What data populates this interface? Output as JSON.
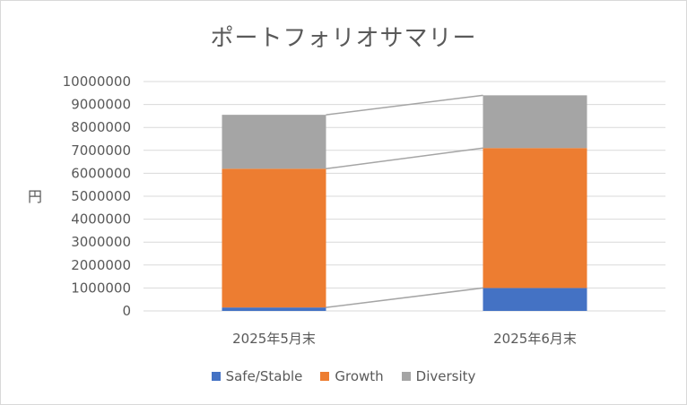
{
  "chart_data": {
    "type": "bar",
    "stacked": true,
    "title": "ポートフォリオサマリー",
    "xlabel": "",
    "ylabel": "円",
    "categories": [
      "2025年5月末",
      "2025年6月末"
    ],
    "series": [
      {
        "name": "Safe/Stable",
        "color": "#4472c4",
        "values": [
          150000,
          1000000
        ]
      },
      {
        "name": "Growth",
        "color": "#ed7d31",
        "values": [
          6050000,
          6100000
        ]
      },
      {
        "name": "Diversity",
        "color": "#a5a5a5",
        "values": [
          2350000,
          2300000
        ]
      }
    ],
    "ylim": [
      0,
      10000000
    ],
    "yticks": [
      "0",
      "1000000",
      "2000000",
      "3000000",
      "4000000",
      "5000000",
      "6000000",
      "7000000",
      "8000000",
      "9000000",
      "10000000"
    ],
    "grid": true,
    "series_lines": true,
    "legend_position": "bottom"
  }
}
